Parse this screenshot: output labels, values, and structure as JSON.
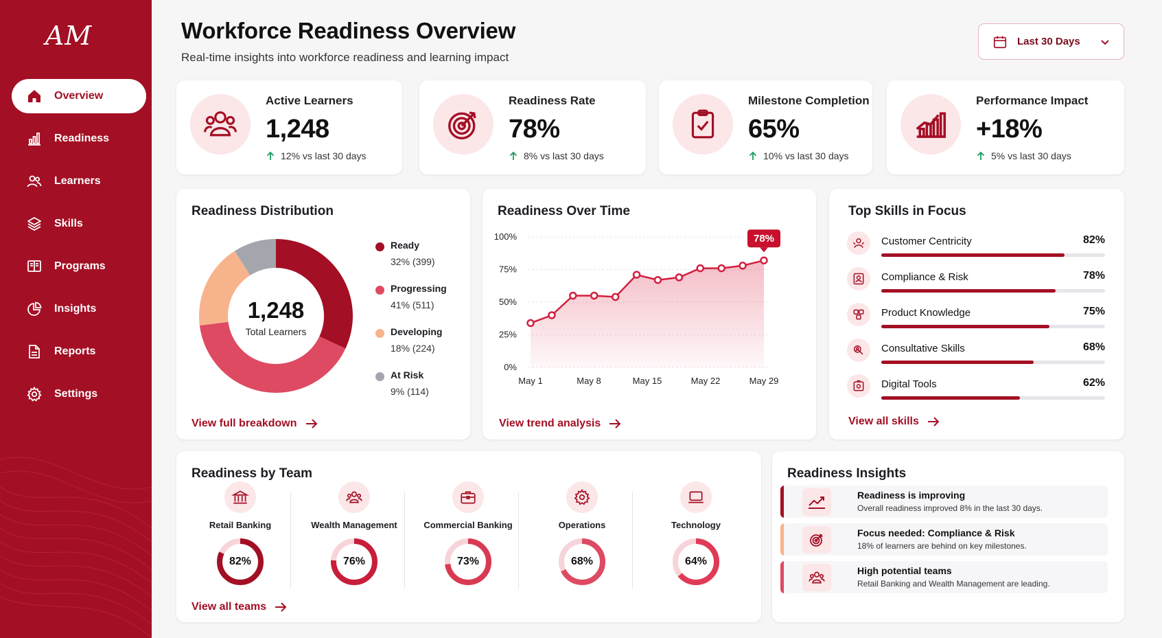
{
  "brand": {
    "logo_text": "AM",
    "accent": "#a30f24"
  },
  "sidebar": {
    "items": [
      {
        "label": "Overview",
        "icon": "home-icon",
        "active": true
      },
      {
        "label": "Readiness",
        "icon": "bar-chart-icon"
      },
      {
        "label": "Learners",
        "icon": "users-icon"
      },
      {
        "label": "Skills",
        "icon": "layers-icon"
      },
      {
        "label": "Programs",
        "icon": "book-icon"
      },
      {
        "label": "Insights",
        "icon": "pie-chart-icon"
      },
      {
        "label": "Reports",
        "icon": "document-icon"
      },
      {
        "label": "Settings",
        "icon": "gear-icon"
      }
    ]
  },
  "header": {
    "title": "Workforce Readiness Overview",
    "subtitle": "Real-time insights into workforce readiness and learning impact",
    "date_range": "Last 30 Days"
  },
  "kpis": [
    {
      "label": "Active Learners",
      "value": "1,248",
      "trend": "12% vs last 30 days",
      "icon": "users-icon"
    },
    {
      "label": "Readiness Rate",
      "value": "78%",
      "trend": "8% vs last 30 days",
      "icon": "target-icon"
    },
    {
      "label": "Milestone Completion",
      "value": "65%",
      "trend": "10% vs last 30 days",
      "icon": "clipboard-check-icon"
    },
    {
      "label": "Performance Impact",
      "value": "+18%",
      "trend": "5% vs last 30 days",
      "icon": "growth-chart-icon"
    }
  ],
  "distribution": {
    "title": "Readiness Distribution",
    "center_value": "1,248",
    "center_label": "Total Learners",
    "link": "View full breakdown",
    "legend": [
      {
        "name": "Ready",
        "detail": "32% (399)",
        "color": "#a30f24"
      },
      {
        "name": "Progressing",
        "detail": "41% (511)",
        "color": "#de4a62"
      },
      {
        "name": "Developing",
        "detail": "18% (224)",
        "color": "#f7b38c"
      },
      {
        "name": "At Risk",
        "detail": "9% (114)",
        "color": "#a3a6ad"
      }
    ]
  },
  "trend": {
    "title": "Readiness Over Time",
    "link": "View trend analysis",
    "callout": "78%"
  },
  "skills": {
    "title": "Top Skills in Focus",
    "link": "View all skills",
    "items": [
      {
        "name": "Customer Centricity",
        "pct": "82%",
        "value": 82,
        "icon": "customer-icon"
      },
      {
        "name": "Compliance & Risk",
        "pct": "78%",
        "value": 78,
        "icon": "shield-user-icon"
      },
      {
        "name": "Product Knowledge",
        "pct": "75%",
        "value": 75,
        "icon": "puzzle-icon"
      },
      {
        "name": "Consultative Skills",
        "pct": "68%",
        "value": 68,
        "icon": "chat-user-icon"
      },
      {
        "name": "Digital Tools",
        "pct": "62%",
        "value": 62,
        "icon": "device-icon"
      }
    ]
  },
  "teams": {
    "title": "Readiness by Team",
    "link": "View all teams",
    "items": [
      {
        "name": "Retail Banking",
        "pct": "82%",
        "value": 82,
        "color": "#a30f24",
        "icon": "bank-icon"
      },
      {
        "name": "Wealth Management",
        "pct": "76%",
        "value": 76,
        "color": "#c81e3a",
        "icon": "users-icon"
      },
      {
        "name": "Commercial Banking",
        "pct": "73%",
        "value": 73,
        "color": "#d83a52",
        "icon": "briefcase-icon"
      },
      {
        "name": "Operations",
        "pct": "68%",
        "value": 68,
        "color": "#de4a62",
        "icon": "gear-icon"
      },
      {
        "name": "Technology",
        "pct": "64%",
        "value": 64,
        "color": "#e03a56",
        "icon": "laptop-icon"
      }
    ]
  },
  "insights": {
    "title": "Readiness Insights",
    "items": [
      {
        "title": "Readiness is improving",
        "desc": "Overall readiness improved 8% in the last 30 days.",
        "color": "#a30f24",
        "icon": "trend-up-icon"
      },
      {
        "title": "Focus needed: Compliance & Risk",
        "desc": "18% of learners are behind on key milestones.",
        "color": "#f7b38c",
        "icon": "target-icon"
      },
      {
        "title": "High potential teams",
        "desc": "Retail Banking and Wealth Management are leading.",
        "color": "#de4a62",
        "icon": "users-icon"
      }
    ]
  },
  "chart_data": [
    {
      "type": "pie",
      "categories": [
        "Ready",
        "Progressing",
        "Developing",
        "At Risk"
      ],
      "values": [
        32,
        41,
        18,
        9
      ],
      "counts": [
        399,
        511,
        224,
        114
      ]
    },
    {
      "type": "area",
      "x": [
        "May 1",
        "May 3",
        "May 6",
        "May 8",
        "May 11",
        "May 13",
        "May 16",
        "May 18",
        "May 20",
        "May 22",
        "May 25",
        "May 29"
      ],
      "xticks": [
        "May 1",
        "May 8",
        "May 15",
        "May 22",
        "May 29"
      ],
      "values": [
        34,
        40,
        55,
        55,
        54,
        71,
        67,
        69,
        76,
        76,
        78,
        82
      ],
      "ylim": [
        0,
        100
      ],
      "yticks": [
        "0%",
        "25%",
        "50%",
        "75%",
        "100%"
      ],
      "grid": true
    }
  ]
}
